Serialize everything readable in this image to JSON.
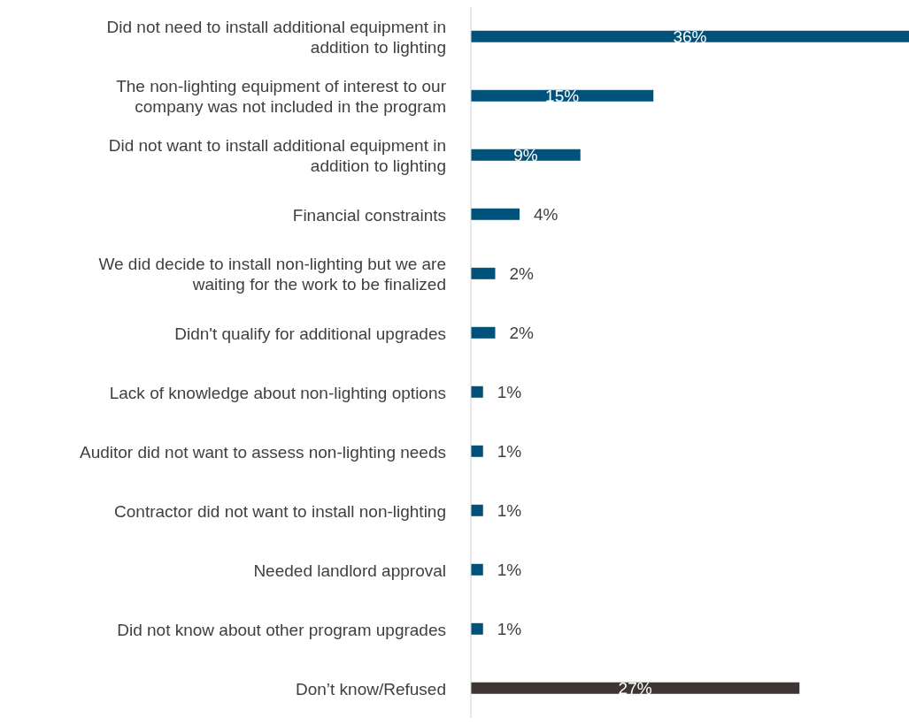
{
  "chart_data": {
    "type": "bar",
    "orientation": "horizontal",
    "categories": [
      "Did not need to install additional equipment in addition to lighting",
      "The non-lighting equipment of interest to our company was not included in the program",
      "Did not want to install additional equipment in addition to lighting",
      "Financial constraints",
      "We did decide to install non-lighting but we are waiting for the work to be finalized",
      "Didn't qualify for additional upgrades",
      "Lack of knowledge about non-lighting options",
      "Auditor did not want to assess non-lighting needs",
      "Contractor did not want to install non-lighting",
      "Needed landlord approval",
      "Did not know about other program upgrades",
      "Don’t know/Refused"
    ],
    "values": [
      36,
      15,
      9,
      4,
      2,
      2,
      1,
      1,
      1,
      1,
      1,
      27
    ],
    "colors": [
      "#00527a",
      "#00527a",
      "#00527a",
      "#00527a",
      "#00527a",
      "#00527a",
      "#00527a",
      "#00527a",
      "#00527a",
      "#00527a",
      "#00527a",
      "#3f3535"
    ],
    "value_labels": [
      "36%",
      "15%",
      "9%",
      "4%",
      "2%",
      "2%",
      "1%",
      "1%",
      "1%",
      "1%",
      "1%",
      "27%"
    ],
    "grid": false,
    "legend": false
  }
}
